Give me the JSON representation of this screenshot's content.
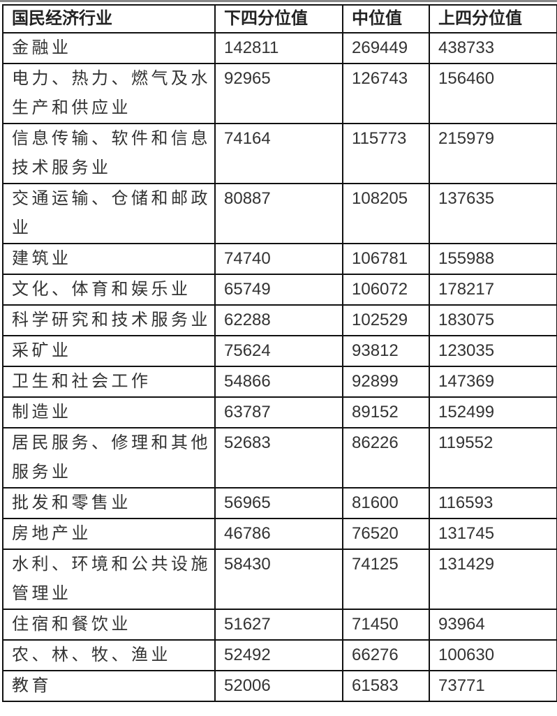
{
  "table": {
    "headers": [
      "国民经济行业",
      "下四分位值",
      "中位值",
      "上四分位值"
    ],
    "rows": [
      {
        "industry": "金融业",
        "lower_quartile": "142811",
        "median": "269449",
        "upper_quartile": "438733"
      },
      {
        "industry": "电力、热力、燃气及水生产和供应业",
        "lower_quartile": "92965",
        "median": "126743",
        "upper_quartile": "156460"
      },
      {
        "industry": "信息传输、软件和信息技术服务业",
        "lower_quartile": "74164",
        "median": "115773",
        "upper_quartile": "215979"
      },
      {
        "industry": "交通运输、仓储和邮政业",
        "lower_quartile": "80887",
        "median": "108205",
        "upper_quartile": "137635"
      },
      {
        "industry": "建筑业",
        "lower_quartile": "74740",
        "median": "106781",
        "upper_quartile": "155988"
      },
      {
        "industry": "文化、体育和娱乐业",
        "lower_quartile": "65749",
        "median": "106072",
        "upper_quartile": "178217"
      },
      {
        "industry": "科学研究和技术服务业",
        "lower_quartile": "62288",
        "median": "102529",
        "upper_quartile": "183075"
      },
      {
        "industry": "采矿业",
        "lower_quartile": "75624",
        "median": "93812",
        "upper_quartile": "123035"
      },
      {
        "industry": "卫生和社会工作",
        "lower_quartile": "54866",
        "median": "92899",
        "upper_quartile": "147369"
      },
      {
        "industry": "制造业",
        "lower_quartile": "63787",
        "median": "89152",
        "upper_quartile": "152499"
      },
      {
        "industry": "居民服务、修理和其他服务业",
        "lower_quartile": "52683",
        "median": "86226",
        "upper_quartile": "119552"
      },
      {
        "industry": "批发和零售业",
        "lower_quartile": "56965",
        "median": "81600",
        "upper_quartile": "116593"
      },
      {
        "industry": "房地产业",
        "lower_quartile": "46786",
        "median": "76520",
        "upper_quartile": "131745"
      },
      {
        "industry": "水利、环境和公共设施管理业",
        "lower_quartile": "58430",
        "median": "74125",
        "upper_quartile": "131429"
      },
      {
        "industry": "住宿和餐饮业",
        "lower_quartile": "51627",
        "median": "71450",
        "upper_quartile": "93964"
      },
      {
        "industry": "农、林、牧、渔业",
        "lower_quartile": "52492",
        "median": "66276",
        "upper_quartile": "100630"
      },
      {
        "industry": "教育",
        "lower_quartile": "52006",
        "median": "61583",
        "upper_quartile": "73771"
      }
    ]
  }
}
